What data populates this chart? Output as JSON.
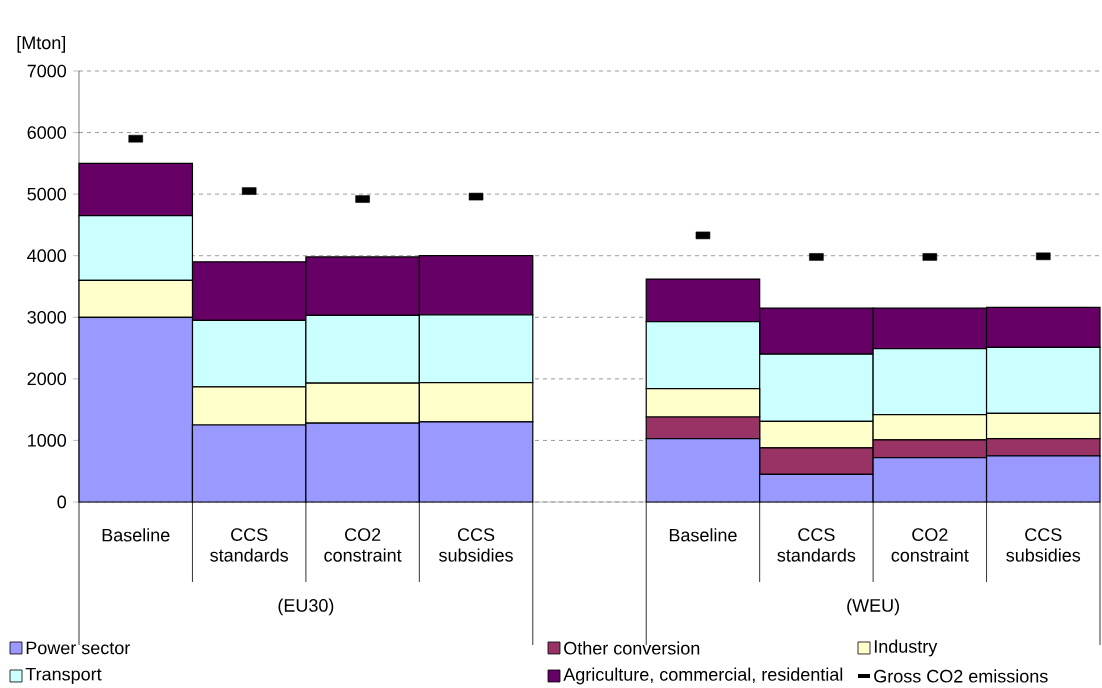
{
  "chart_data": {
    "type": "bar",
    "stacked": true,
    "ylabel": "[Mton]",
    "categories": [
      "Baseline",
      "CCS standards",
      "CO2 constraint",
      "CCS subsidies",
      null,
      "Baseline",
      "CCS standards",
      "CO2 constraint",
      "CCS subsidies"
    ],
    "annotations": [
      "(EU30)",
      "(WEU)"
    ],
    "series": [
      {
        "name": "Power sector",
        "color": "#9999ff",
        "values": [
          3000,
          1250,
          1280,
          1300,
          null,
          1030,
          450,
          720,
          750
        ]
      },
      {
        "name": "Other conversion",
        "color": "#993366",
        "values": [
          0,
          0,
          0,
          0,
          null,
          350,
          430,
          290,
          280
        ]
      },
      {
        "name": "Industry",
        "color": "#ffffcc",
        "values": [
          600,
          620,
          650,
          640,
          null,
          460,
          430,
          410,
          410
        ]
      },
      {
        "name": "Transport",
        "color": "#ccffff",
        "values": [
          1050,
          1080,
          1100,
          1100,
          null,
          1090,
          1090,
          1070,
          1070
        ]
      },
      {
        "name": "Agriculture, commercial, residential",
        "color": "#660066",
        "values": [
          850,
          950,
          950,
          960,
          null,
          690,
          750,
          660,
          650
        ]
      },
      {
        "name": "Gross CO2 emissions",
        "type": "scatter",
        "color": "#000000",
        "values": [
          5900,
          5050,
          4920,
          4960,
          null,
          4330,
          3980,
          3980,
          3990
        ]
      }
    ],
    "ylim": [
      0,
      7000
    ],
    "yticks": [
      0,
      1000,
      2000,
      3000,
      4000,
      5000,
      6000,
      7000
    ],
    "grid": "y",
    "legend": "bottom"
  }
}
